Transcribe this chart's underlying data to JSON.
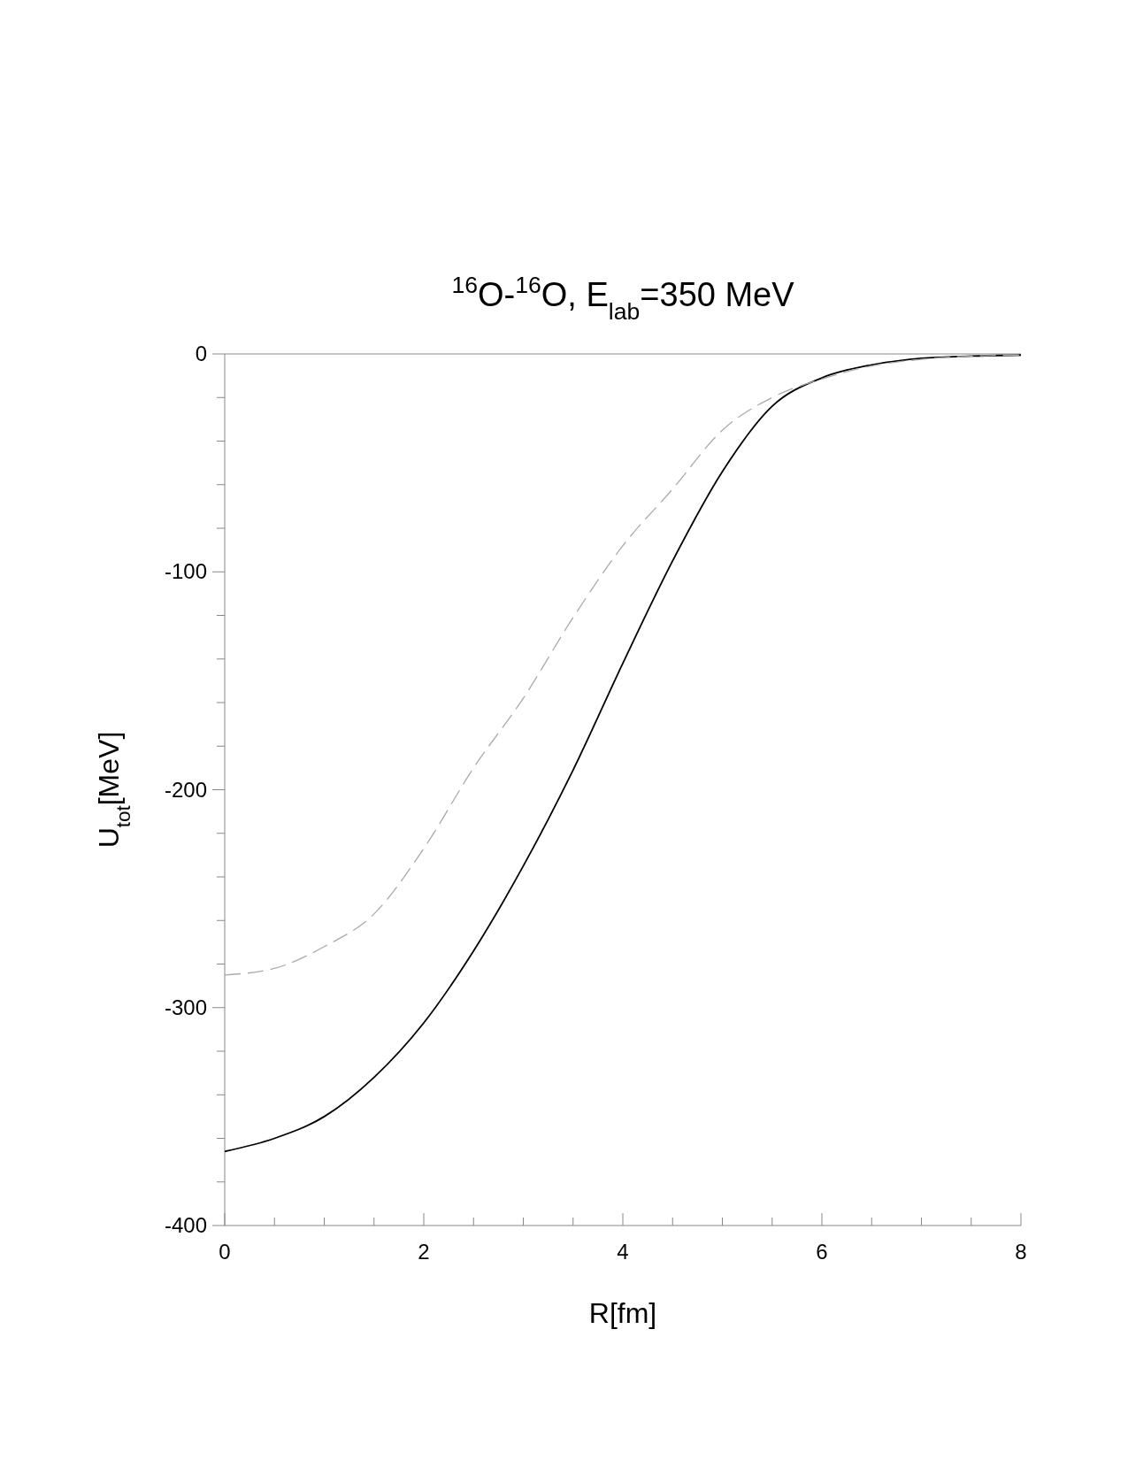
{
  "chart_data": {
    "type": "line",
    "title": "$^{16}$O-$^{16}$O, E$_{lab}$=350 MeV",
    "xlabel": "R[fm]",
    "ylabel": "U$_{tot}$[MeV]",
    "xlim": [
      0,
      8
    ],
    "ylim": [
      -400,
      0
    ],
    "xticks": [
      0,
      {
        "value": 0.5,
        "label": null
      },
      {
        "value": 1,
        "label": null
      },
      {
        "value": 1.5,
        "label": null
      },
      2,
      {
        "value": 2.5,
        "label": null
      },
      {
        "value": 3,
        "label": null
      },
      {
        "value": 3.5,
        "label": null
      },
      4,
      {
        "value": 4.5,
        "label": null
      },
      {
        "value": 5,
        "label": null
      },
      {
        "value": 5.5,
        "label": null
      },
      6,
      {
        "value": 6.5,
        "label": null
      },
      {
        "value": 7,
        "label": null
      },
      {
        "value": 7.5,
        "label": null
      },
      8
    ],
    "yticks": [
      -400,
      {
        "value": -380,
        "label": null
      },
      {
        "value": -360,
        "label": null
      },
      {
        "value": -340,
        "label": null
      },
      {
        "value": -320,
        "label": null
      },
      -300,
      {
        "value": -280,
        "label": null
      },
      {
        "value": -260,
        "label": null
      },
      {
        "value": -240,
        "label": null
      },
      {
        "value": -220,
        "label": null
      },
      -200,
      {
        "value": -180,
        "label": null
      },
      {
        "value": -160,
        "label": null
      },
      {
        "value": -140,
        "label": null
      },
      {
        "value": -120,
        "label": null
      },
      -100,
      {
        "value": -80,
        "label": null
      },
      {
        "value": -60,
        "label": null
      },
      {
        "value": -40,
        "label": null
      },
      {
        "value": -20,
        "label": null
      },
      0
    ],
    "grid": false,
    "x": [
      0,
      0.5,
      1,
      1.5,
      2,
      2.5,
      3,
      3.5,
      4,
      4.5,
      5,
      5.5,
      6,
      6.5,
      7,
      7.5,
      8
    ],
    "series": [
      {
        "color": "#000000",
        "line_style": "solid",
        "values": [
          -366,
          -360,
          -350,
          -332,
          -307,
          -274,
          -235,
          -191,
          -142,
          -95,
          -54,
          -24,
          -11,
          -5,
          -2,
          -1,
          -0.5
        ]
      },
      {
        "color": "#aaaaaa",
        "line_style": "dashed",
        "values": [
          -285,
          -282,
          -272,
          -257,
          -227,
          -190,
          -158,
          -121,
          -88,
          -62,
          -35,
          -20,
          -11.5,
          -5.5,
          -2.5,
          -1,
          -0.5
        ]
      }
    ]
  }
}
